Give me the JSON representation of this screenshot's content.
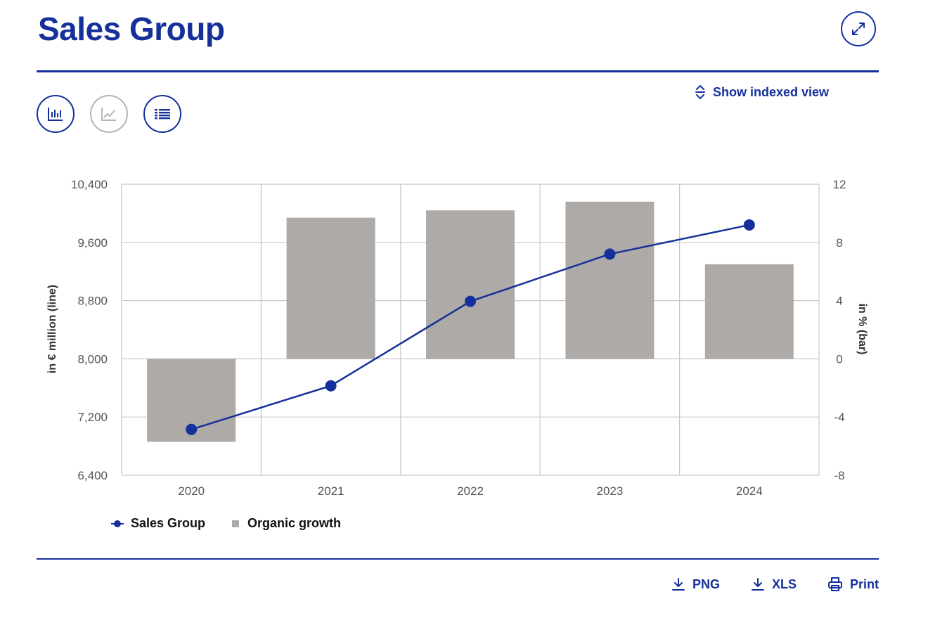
{
  "header": {
    "title": "Sales Group"
  },
  "controls": {
    "indexed_view_label": "Show indexed view"
  },
  "colors": {
    "brand": "#15309a",
    "bar": "#aeaaa7",
    "grid": "#c8c8c8",
    "inactive": "#b5b5b5"
  },
  "chart_data": {
    "type": "bar+line",
    "categories": [
      "2020",
      "2021",
      "2022",
      "2023",
      "2024"
    ],
    "series": [
      {
        "name": "Sales Group",
        "type": "line",
        "axis": "left",
        "values": [
          7030,
          7630,
          8790,
          9440,
          9840
        ]
      },
      {
        "name": "Organic growth",
        "type": "bar",
        "axis": "right",
        "values": [
          -5.7,
          9.7,
          10.2,
          10.8,
          6.5
        ]
      }
    ],
    "left_axis": {
      "label": "in € million (line)",
      "min": 6400,
      "max": 10400,
      "ticks": [
        "6,400",
        "7,200",
        "8,000",
        "8,800",
        "9,600",
        "10,400"
      ]
    },
    "right_axis": {
      "label": "in % (bar)",
      "min": -8,
      "max": 12,
      "ticks": [
        "-8",
        "-4",
        "0",
        "4",
        "8",
        "12"
      ]
    },
    "grid": true,
    "legend_position": "bottom-left"
  },
  "legend": {
    "line_label": "Sales Group",
    "bar_label": "Organic growth"
  },
  "footer": {
    "png_label": "PNG",
    "xls_label": "XLS",
    "print_label": "Print"
  }
}
